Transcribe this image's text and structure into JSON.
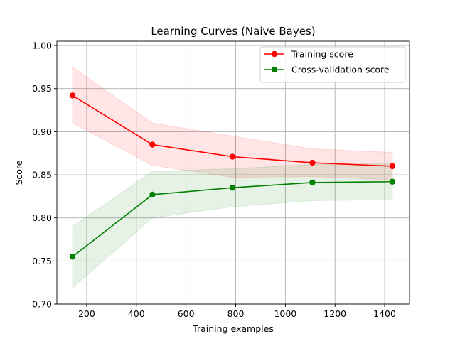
{
  "chart_data": {
    "type": "line",
    "title": "Learning Curves (Naive Bayes)",
    "xlabel": "Training examples",
    "ylabel": "Score",
    "xlim": [
      80,
      1500
    ],
    "ylim": [
      0.7,
      1.005
    ],
    "x_ticks": [
      200,
      400,
      600,
      800,
      1000,
      1200,
      1400
    ],
    "y_ticks": [
      0.7,
      0.75,
      0.8,
      0.85,
      0.9,
      0.95,
      1.0
    ],
    "y_tick_labels": [
      "0.70",
      "0.75",
      "0.80",
      "0.85",
      "0.90",
      "0.95",
      "1.00"
    ],
    "grid": true,
    "legend_position": "top-right",
    "x": [
      143,
      465,
      787,
      1109,
      1431
    ],
    "series": [
      {
        "name": "Training score",
        "color": "#ff0000",
        "band_color": "#ff0000",
        "values": [
          0.942,
          0.885,
          0.871,
          0.864,
          0.86
        ],
        "band_upper": [
          0.975,
          0.91,
          0.895,
          0.88,
          0.876
        ],
        "band_lower": [
          0.91,
          0.861,
          0.847,
          0.848,
          0.844
        ]
      },
      {
        "name": "Cross-validation score",
        "color": "#008000",
        "band_color": "#008000",
        "values": [
          0.755,
          0.827,
          0.835,
          0.841,
          0.842
        ],
        "band_upper": [
          0.79,
          0.854,
          0.857,
          0.862,
          0.863
        ],
        "band_lower": [
          0.719,
          0.8,
          0.813,
          0.82,
          0.821
        ]
      }
    ]
  }
}
